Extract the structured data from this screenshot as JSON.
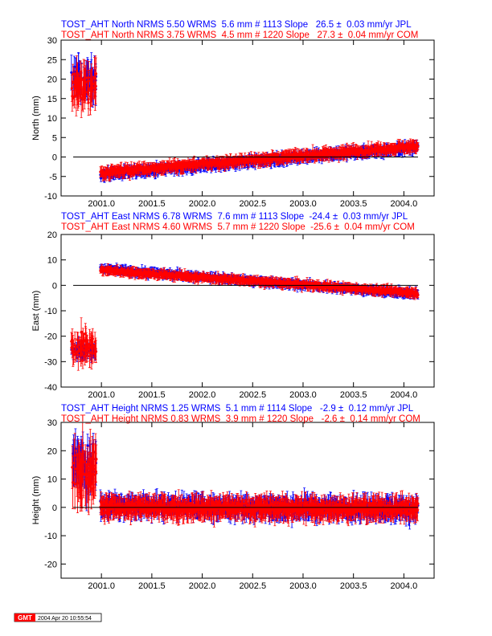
{
  "colors": {
    "jpl": "#0000ff",
    "com": "#ff0000",
    "axis": "#000000"
  },
  "x_ticks": [
    "2001.0",
    "2001.5",
    "2002.0",
    "2002.5",
    "2003.0",
    "2003.5",
    "2004.0"
  ],
  "footer": {
    "logo": "GMT",
    "timestamp": "2004 Apr 20 10:55:54"
  },
  "chart_data": [
    {
      "type": "scatter",
      "title": "",
      "ylabel": "North (mm)",
      "xlim": [
        2000.6,
        2004.3
      ],
      "ylim": [
        -10,
        30
      ],
      "y_ticks": [
        "30",
        "25",
        "20",
        "15",
        "10",
        "5",
        "0",
        "-5",
        "-10"
      ],
      "reference_line": 0,
      "series": [
        {
          "label": "TOST_AHT North NRMS 5.50 WRMS  5.6 mm # 1113 Slope   26.5 ±  0.03 mm/yr JPL",
          "color": "#0000ff",
          "n": 1113,
          "slope": 26.5,
          "slope_err": 0.03,
          "early": {
            "x": [
              2000.7,
              2000.95
            ],
            "y": 20,
            "spread": 5
          },
          "trend": {
            "x": [
              2000.99,
              2004.14
            ],
            "y": [
              -4.5,
              2.5
            ],
            "spread": 1.5
          }
        },
        {
          "label": "TOST_AHT North NRMS 3.75 WRMS  4.5 mm # 1220 Slope   27.3 ±  0.04 mm/yr COM",
          "color": "#ff0000",
          "n": 1220,
          "slope": 27.3,
          "slope_err": 0.04,
          "early": {
            "x": [
              2000.7,
              2000.95
            ],
            "y": 18,
            "spread": 6
          },
          "trend": {
            "x": [
              2000.99,
              2004.14
            ],
            "y": [
              -4.0,
              2.8
            ],
            "spread": 1.5
          }
        }
      ]
    },
    {
      "type": "scatter",
      "title": "",
      "ylabel": "East (mm)",
      "xlim": [
        2000.6,
        2004.3
      ],
      "ylim": [
        -40,
        20
      ],
      "y_ticks": [
        "20",
        "10",
        "0",
        "-10",
        "-20",
        "-30",
        "-40"
      ],
      "reference_line": 0,
      "series": [
        {
          "label": "TOST_AHT East NRMS 6.78 WRMS  7.6 mm # 1113 Slope  -24.4 ±  0.03 mm/yr JPL",
          "color": "#0000ff",
          "n": 1113,
          "slope": -24.4,
          "slope_err": 0.03,
          "early": {
            "x": [
              2000.7,
              2000.95
            ],
            "y": -26,
            "spread": 4
          },
          "trend": {
            "x": [
              2000.99,
              2004.14
            ],
            "y": [
              6.5,
              -3.5
            ],
            "spread": 1.8
          }
        },
        {
          "label": "TOST_AHT East NRMS 4.60 WRMS  5.7 mm # 1220 Slope  -25.6 ±  0.04 mm/yr COM",
          "color": "#ff0000",
          "n": 1220,
          "slope": -25.6,
          "slope_err": 0.04,
          "early": {
            "x": [
              2000.7,
              2000.95
            ],
            "y": -24,
            "spread": 7
          },
          "trend": {
            "x": [
              2000.99,
              2004.14
            ],
            "y": [
              6.0,
              -3.0
            ],
            "spread": 1.8
          }
        }
      ]
    },
    {
      "type": "scatter",
      "title": "",
      "ylabel": "Height (mm)",
      "xlim": [
        2000.6,
        2004.3
      ],
      "ylim": [
        -25,
        30
      ],
      "y_ticks": [
        "30",
        "20",
        "10",
        "0",
        "-10",
        "-20"
      ],
      "reference_line": 0,
      "series": [
        {
          "label": "TOST_AHT Height NRMS 1.25 WRMS  5.1 mm # 1114 Slope   -2.9 ±  0.12 mm/yr JPL",
          "color": "#0000ff",
          "n": 1114,
          "slope": -2.9,
          "slope_err": 0.12,
          "early": {
            "x": [
              2000.7,
              2000.95
            ],
            "y": 15,
            "spread": 10
          },
          "trend": {
            "x": [
              2000.99,
              2004.14
            ],
            "y": [
              0.5,
              -0.5
            ],
            "spread": 4
          }
        },
        {
          "label": "TOST_AHT Height NRMS 0.83 WRMS  3.9 mm # 1220 Slope   -2.6 ±  0.14 mm/yr COM",
          "color": "#ff0000",
          "n": 1220,
          "slope": -2.6,
          "slope_err": 0.14,
          "early": {
            "x": [
              2000.7,
              2000.95
            ],
            "y": 12,
            "spread": 12
          },
          "trend": {
            "x": [
              2000.99,
              2004.14
            ],
            "y": [
              0.0,
              -0.5
            ],
            "spread": 4
          }
        }
      ]
    }
  ]
}
